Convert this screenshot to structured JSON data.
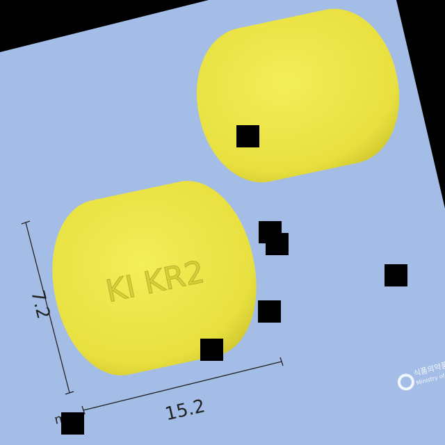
{
  "imprint": "KI KR2",
  "dimensions": {
    "height": "7.2",
    "width": "15.2",
    "unit": "mm"
  },
  "watermark": {
    "name_ko": "식품의약품",
    "name_en": "Ministry of Foo"
  }
}
